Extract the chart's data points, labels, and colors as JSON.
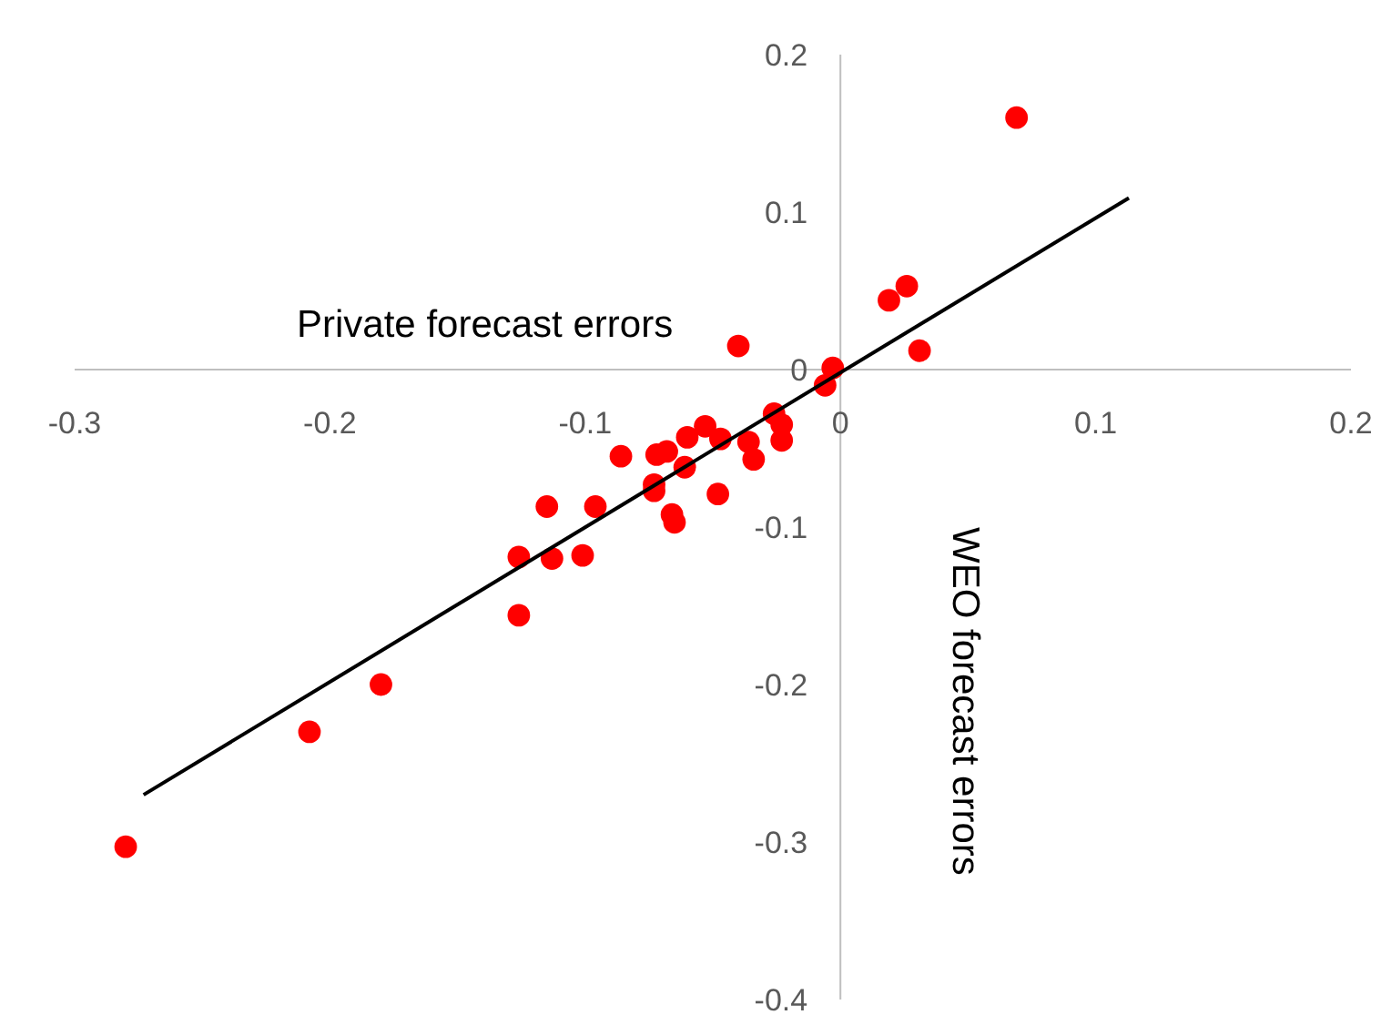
{
  "chart_data": {
    "type": "scatter",
    "xlabel": "Private forecast errors",
    "ylabel": "WEO forecast errors",
    "xlim": [
      -0.3,
      0.2
    ],
    "ylim": [
      -0.4,
      0.2
    ],
    "xticks": [
      -0.3,
      -0.2,
      -0.1,
      {
        "value": 0,
        "label": "0"
      },
      0.1,
      0.2
    ],
    "yticks": [
      -0.4,
      -0.3,
      -0.2,
      -0.1,
      {
        "value": 0,
        "label": "0"
      },
      0.1,
      0.2
    ],
    "grid": false,
    "series": [
      {
        "marker": "circle",
        "color": "#ff0000",
        "x": [
          0.069,
          0.019,
          0.026,
          0.031,
          -0.003,
          -0.006,
          -0.026,
          -0.04,
          -0.023,
          -0.023,
          -0.036,
          -0.034,
          -0.047,
          -0.053,
          -0.06,
          -0.061,
          -0.068,
          -0.072,
          -0.073,
          -0.073,
          -0.048,
          -0.086,
          -0.066,
          -0.065,
          -0.096,
          -0.115,
          -0.101,
          -0.113,
          -0.126,
          -0.126,
          -0.18,
          -0.208,
          -0.28
        ],
        "values": [
          0.16,
          0.044,
          0.053,
          0.012,
          0.001,
          -0.01,
          -0.028,
          0.015,
          -0.045,
          -0.035,
          -0.046,
          -0.057,
          -0.044,
          -0.036,
          -0.043,
          -0.062,
          -0.052,
          -0.054,
          -0.073,
          -0.077,
          -0.079,
          -0.055,
          -0.092,
          -0.097,
          -0.087,
          -0.087,
          -0.118,
          -0.12,
          -0.119,
          -0.156,
          -0.2,
          -0.23,
          -0.303
        ]
      },
      {
        "type": "line",
        "color": "#000000",
        "x": [
          -0.273,
          0.113
        ],
        "values": [
          -0.27,
          0.109
        ]
      }
    ]
  }
}
